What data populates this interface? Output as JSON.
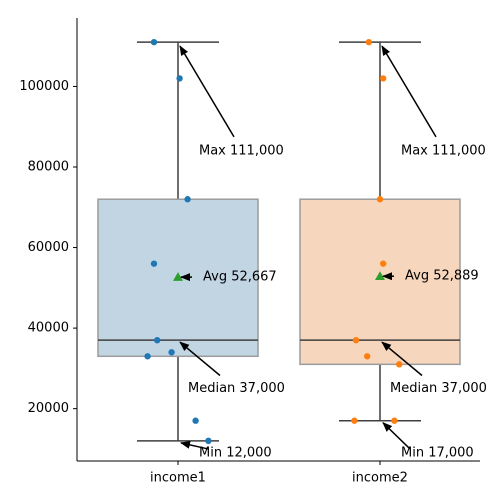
{
  "chart_data": {
    "type": "box",
    "categories": [
      "income1",
      "income2"
    ],
    "ylim": [
      7000,
      117000
    ],
    "yticks": [
      20000,
      40000,
      60000,
      80000,
      100000
    ],
    "ytick_labels": [
      "20000",
      "40000",
      "60000",
      "80000",
      "100000"
    ],
    "grid": false,
    "boxes": [
      {
        "category": "income1",
        "q1": 33000,
        "median": 37000,
        "q3": 72000,
        "whisker_low": 12000,
        "whisker_high": 111000,
        "mean": 52667,
        "fill": "#c2d5e3",
        "point_color": "#1f77b4",
        "points": [
          {
            "offset": -0.15,
            "value": 111000
          },
          {
            "offset": 0.01,
            "value": 102000
          },
          {
            "offset": 0.06,
            "value": 72000
          },
          {
            "offset": -0.15,
            "value": 56000
          },
          {
            "offset": -0.13,
            "value": 37000
          },
          {
            "offset": -0.04,
            "value": 34000
          },
          {
            "offset": -0.19,
            "value": 33000
          },
          {
            "offset": 0.11,
            "value": 17000
          },
          {
            "offset": 0.19,
            "value": 12000
          }
        ]
      },
      {
        "category": "income2",
        "q1": 31000,
        "median": 37000,
        "q3": 72000,
        "whisker_low": 17000,
        "whisker_high": 111000,
        "mean": 52889,
        "fill": "#f6d6bd",
        "point_color": "#ff7f0e",
        "points": [
          {
            "offset": -0.07,
            "value": 111000
          },
          {
            "offset": 0.02,
            "value": 102000
          },
          {
            "offset": 0.0,
            "value": 72000
          },
          {
            "offset": 0.02,
            "value": 56000
          },
          {
            "offset": -0.15,
            "value": 37000
          },
          {
            "offset": -0.08,
            "value": 33000
          },
          {
            "offset": 0.12,
            "value": 31000
          },
          {
            "offset": -0.16,
            "value": 17000
          },
          {
            "offset": 0.09,
            "value": 17000
          }
        ]
      }
    ],
    "mean_marker_color": "#2ca02c",
    "annotations": [
      {
        "box": 0,
        "text": "Max 111,000",
        "value": 111000,
        "text_value": 84000
      },
      {
        "box": 0,
        "text": "Avg 52,667",
        "value": 52667,
        "text_value": 52667
      },
      {
        "box": 0,
        "text": "Median 37,000",
        "value": 37000,
        "text_value": 25000
      },
      {
        "box": 0,
        "text": "Min 12,000",
        "value": 12000,
        "text_value": 9000
      },
      {
        "box": 1,
        "text": "Max 111,000",
        "value": 111000,
        "text_value": 84000
      },
      {
        "box": 1,
        "text": "Avg 52,889",
        "value": 52889,
        "text_value": 52889
      },
      {
        "box": 1,
        "text": "Median 37,000",
        "value": 37000,
        "text_value": 25000
      },
      {
        "box": 1,
        "text": "Min 17,000",
        "value": 17000,
        "text_value": 9000
      }
    ]
  }
}
